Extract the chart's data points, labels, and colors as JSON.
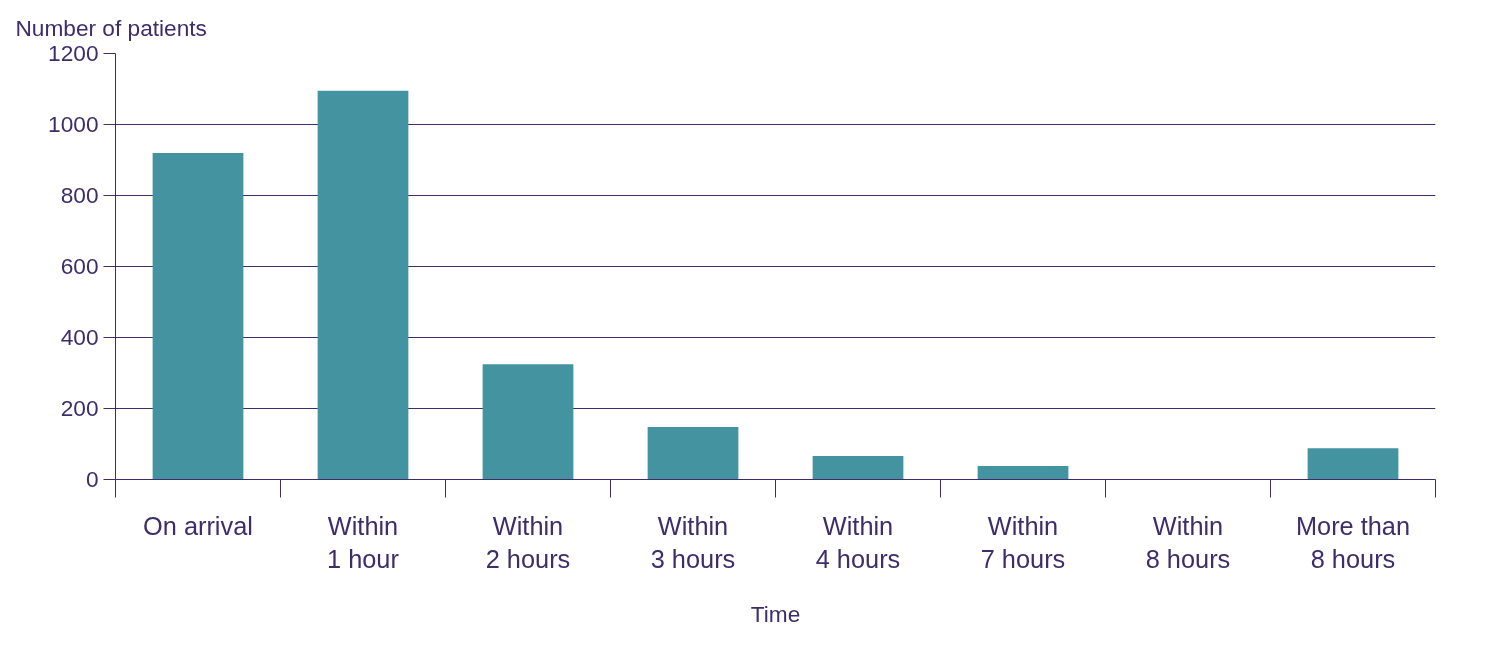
{
  "chart_data": {
    "type": "bar",
    "ylabel": "Number of patients",
    "xlabel": "Time",
    "categories": [
      "On arrival",
      "Within\n1 hour",
      "Within\n2 hours",
      "Within\n3 hours",
      "Within\n4 hours",
      "Within\n7 hours",
      "Within\n8 hours",
      "More than\n8 hours"
    ],
    "values": [
      920,
      1095,
      325,
      148,
      66,
      38,
      0,
      88
    ],
    "color": "#4393a0",
    "ylim": [
      0,
      1200
    ],
    "yticks": [
      0,
      200,
      400,
      600,
      800,
      1000,
      1200
    ],
    "grid": "y"
  }
}
